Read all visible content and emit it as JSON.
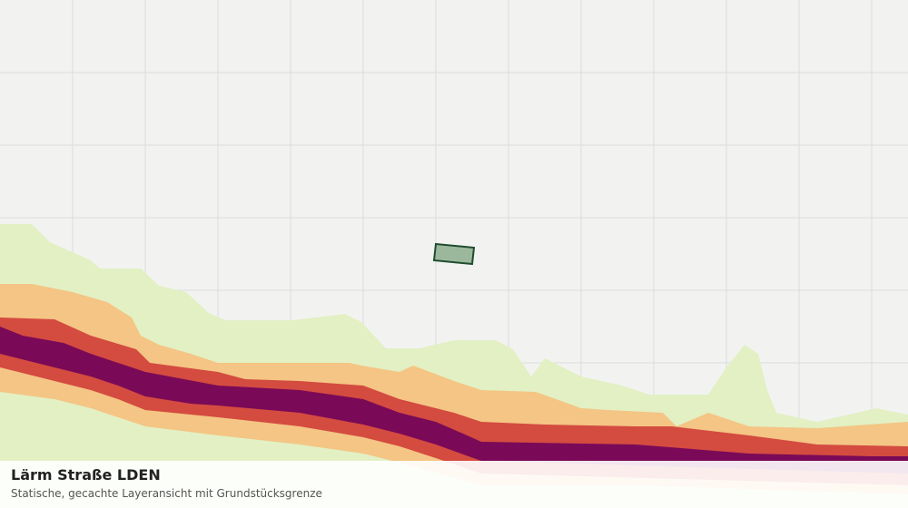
{
  "legend_overlay": {
    "title": "Lärm Straße LDEN",
    "subtitle": "Statische, gecachte Layeransicht mit Grundstücksgrenze"
  }
}
